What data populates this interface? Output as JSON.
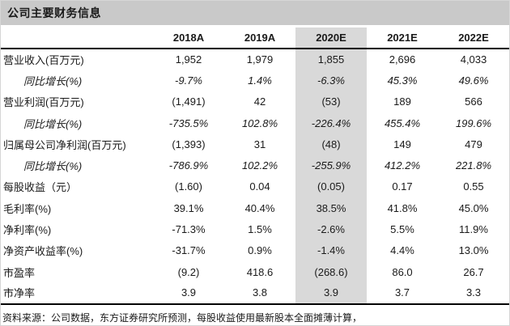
{
  "title": "公司主要财务信息",
  "colors": {
    "title_band": "#c9c9c9",
    "highlight_column": "#d9d9d9",
    "rule": "#000000",
    "text": "#1a1a1a"
  },
  "table": {
    "columns": [
      "2018A",
      "2019A",
      "2020E",
      "2021E",
      "2022E"
    ],
    "highlight_column": "2020E",
    "highlight_column_index": 2,
    "rows": [
      {
        "label": "营业收入(百万元)",
        "indent": false,
        "italic": false,
        "values": [
          "1,952",
          "1,979",
          "1,855",
          "2,696",
          "4,033"
        ]
      },
      {
        "label": "同比增长(%)",
        "indent": true,
        "italic": true,
        "values": [
          "-9.7%",
          "1.4%",
          "-6.3%",
          "45.3%",
          "49.6%"
        ]
      },
      {
        "label": "营业利润(百万元)",
        "indent": false,
        "italic": false,
        "values": [
          "(1,491)",
          "42",
          "(53)",
          "189",
          "566"
        ]
      },
      {
        "label": "同比增长(%)",
        "indent": true,
        "italic": true,
        "values": [
          "-735.5%",
          "102.8%",
          "-226.4%",
          "455.4%",
          "199.6%"
        ]
      },
      {
        "label": "归属母公司净利润(百万元)",
        "indent": false,
        "italic": false,
        "values": [
          "(1,393)",
          "31",
          "(48)",
          "149",
          "479"
        ]
      },
      {
        "label": "同比增长(%)",
        "indent": true,
        "italic": true,
        "values": [
          "-786.9%",
          "102.2%",
          "-255.9%",
          "412.2%",
          "221.8%"
        ]
      },
      {
        "label": "每股收益（元）",
        "indent": false,
        "italic": false,
        "values": [
          "(1.60)",
          "0.04",
          "(0.05)",
          "0.17",
          "0.55"
        ]
      },
      {
        "label": "毛利率(%)",
        "indent": false,
        "italic": false,
        "values": [
          "39.1%",
          "40.4%",
          "38.5%",
          "41.8%",
          "45.0%"
        ]
      },
      {
        "label": "净利率(%)",
        "indent": false,
        "italic": false,
        "values": [
          "-71.3%",
          "1.5%",
          "-2.6%",
          "5.5%",
          "11.9%"
        ]
      },
      {
        "label": "净资产收益率(%)",
        "indent": false,
        "italic": false,
        "values": [
          "-31.7%",
          "0.9%",
          "-1.4%",
          "4.4%",
          "13.0%"
        ]
      },
      {
        "label": "市盈率",
        "indent": false,
        "italic": false,
        "values": [
          "(9.2)",
          "418.6",
          "(268.6)",
          "86.0",
          "26.7"
        ]
      },
      {
        "label": "市净率",
        "indent": false,
        "italic": false,
        "values": [
          "3.9",
          "3.8",
          "3.9",
          "3.7",
          "3.3"
        ]
      }
    ]
  },
  "footer": "资料来源：公司数据，东方证券研究所预测，每股收益使用最新股本全面摊薄计算，"
}
